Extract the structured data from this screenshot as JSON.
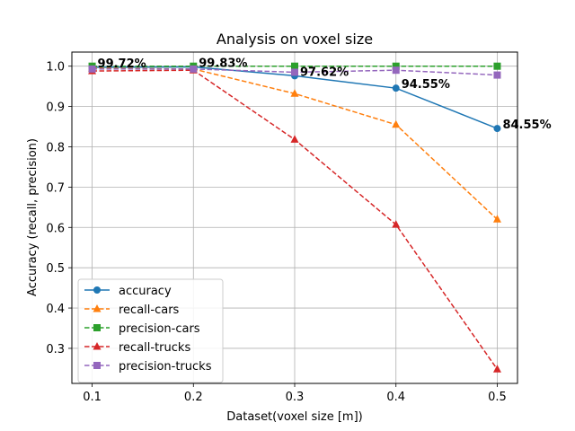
{
  "chart_data": {
    "type": "line",
    "title": "Analysis on voxel size",
    "xlabel": "Dataset(voxel size [m])",
    "ylabel": "Accuracy (recall, precision)",
    "x": [
      0.1,
      0.2,
      0.3,
      0.4,
      0.5
    ],
    "x_ticks": [
      "0.1",
      "0.2",
      "0.3",
      "0.4",
      "0.5"
    ],
    "xlim": [
      0.08,
      0.52
    ],
    "y_ticks": [
      "0.3",
      "0.4",
      "0.5",
      "0.6",
      "0.7",
      "0.8",
      "0.9",
      "1.0"
    ],
    "ylim": [
      0.213,
      1.035
    ],
    "grid": true,
    "legend_position": "lower-left",
    "series": [
      {
        "name": "accuracy",
        "values": [
          0.9972,
          0.9983,
          0.9762,
          0.9455,
          0.8455
        ],
        "color": "#1f77b4",
        "linestyle": "solid",
        "marker": "circle"
      },
      {
        "name": "recall-cars",
        "values": [
          0.995,
          0.993,
          0.932,
          0.855,
          0.62
        ],
        "color": "#ff7f0e",
        "linestyle": "dashed",
        "marker": "triangle"
      },
      {
        "name": "precision-cars",
        "values": [
          1.0,
          1.0,
          1.0,
          1.0,
          1.0
        ],
        "color": "#2ca02c",
        "linestyle": "dashed",
        "marker": "square"
      },
      {
        "name": "recall-trucks",
        "values": [
          0.988,
          0.99,
          0.818,
          0.607,
          0.248
        ],
        "color": "#d62728",
        "linestyle": "dashed",
        "marker": "triangle"
      },
      {
        "name": "precision-trucks",
        "values": [
          0.993,
          0.993,
          0.985,
          0.99,
          0.978
        ],
        "color": "#9467bd",
        "linestyle": "dashed",
        "marker": "square"
      }
    ],
    "annotations": [
      {
        "text": "99.72%",
        "x": 0.1,
        "y": 0.9972
      },
      {
        "text": "99.83%",
        "x": 0.2,
        "y": 0.9983
      },
      {
        "text": "97.62%",
        "x": 0.3,
        "y": 0.9762
      },
      {
        "text": "94.55%",
        "x": 0.4,
        "y": 0.9455
      },
      {
        "text": "84.55%",
        "x": 0.5,
        "y": 0.8455
      }
    ]
  }
}
